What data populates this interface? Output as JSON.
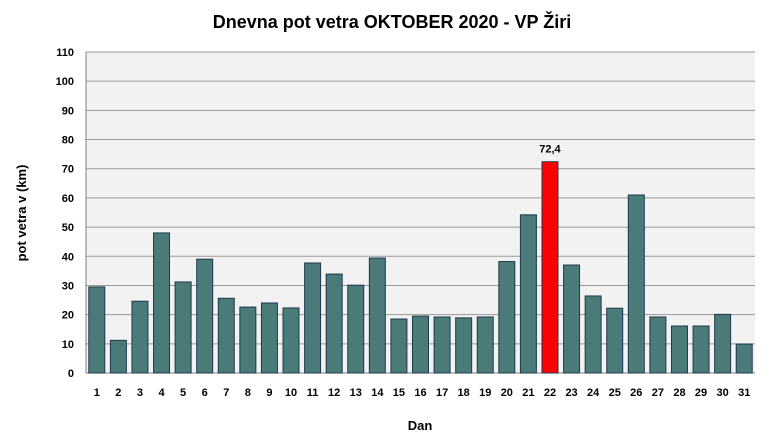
{
  "chart_data": {
    "type": "bar",
    "title": "Dnevna pot vetra OKTOBER  2020 - VP Žiri",
    "xlabel": "Dan",
    "ylabel": "pot vetra  v (km)",
    "ylim": [
      0,
      110
    ],
    "yticks": [
      0,
      10,
      20,
      30,
      40,
      50,
      60,
      70,
      80,
      90,
      100,
      110
    ],
    "grid": true,
    "categories": [
      "1",
      "2",
      "3",
      "4",
      "5",
      "6",
      "7",
      "8",
      "9",
      "10",
      "11",
      "12",
      "13",
      "14",
      "15",
      "16",
      "17",
      "18",
      "19",
      "20",
      "21",
      "22",
      "23",
      "24",
      "25",
      "26",
      "27",
      "28",
      "29",
      "30",
      "31"
    ],
    "values": [
      29.5,
      11.2,
      24.6,
      48.0,
      31.2,
      39.0,
      25.6,
      22.6,
      24.0,
      22.3,
      37.7,
      33.9,
      30.1,
      39.4,
      18.5,
      19.5,
      19.2,
      18.9,
      19.2,
      38.2,
      54.2,
      72.4,
      37.0,
      26.4,
      22.2,
      61.0,
      19.2,
      16.1,
      16.1,
      20.1,
      9.9
    ],
    "colors": {
      "bar": "#4a7b78",
      "highlight": "#ff0000",
      "plot_bg": "#f2f2f2",
      "grid": "#9a9a9a"
    },
    "highlight": {
      "index": 21,
      "label": "72,4"
    }
  }
}
